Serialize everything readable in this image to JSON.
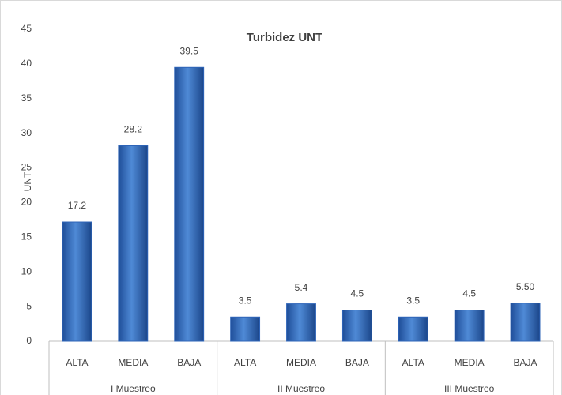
{
  "chart_data": {
    "type": "bar",
    "title": "Turbidez UNT",
    "y_label": "UNT",
    "categories": [
      "ALTA",
      "MEDIA",
      "BAJA",
      "ALTA",
      "MEDIA",
      "BAJA",
      "ALTA",
      "MEDIA",
      "BAJA"
    ],
    "category_groups": [
      "I Muestreo",
      "II Muestreo",
      "III Muestreo"
    ],
    "values": [
      17.2,
      28.2,
      39.5,
      3.5,
      5.4,
      4.5,
      3.5,
      4.5,
      5.5
    ],
    "value_labels": [
      "17.2",
      "28.2",
      "39.5",
      "3.5",
      "5.4",
      "4.5",
      "3.5",
      "4.5",
      "5.50"
    ],
    "color": "#2e64b8",
    "ylim": [
      0,
      45
    ],
    "yticks": [
      0,
      5,
      10,
      15,
      20,
      25,
      30,
      35,
      40,
      45
    ],
    "grid": false
  }
}
